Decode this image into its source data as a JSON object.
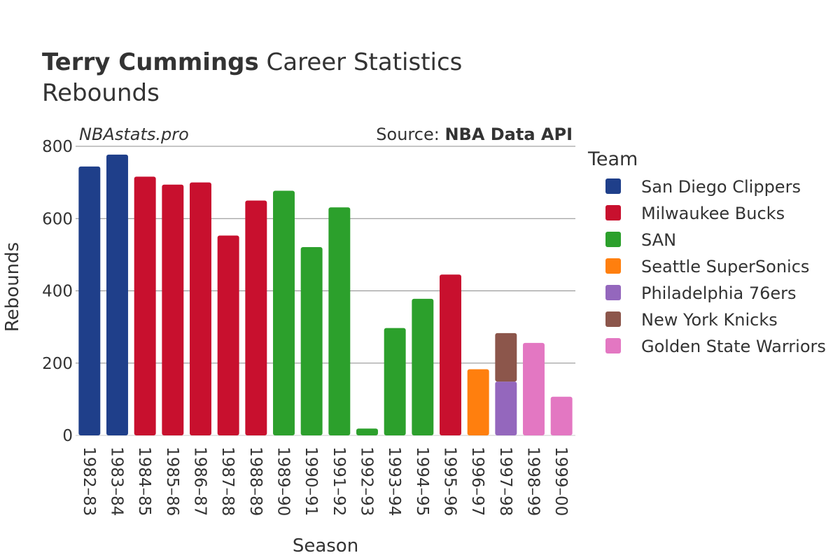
{
  "title": {
    "bold": "Terry Cummings",
    "rest": " Career Statistics"
  },
  "subtitle": "Rebounds",
  "watermark": "NBAstats.pro",
  "source": {
    "prefix": "Source: ",
    "name": "NBA Data API"
  },
  "legend_title": "Team",
  "chart_data": {
    "type": "bar",
    "stacked": true,
    "xlabel": "Season",
    "ylabel": "Rebounds",
    "ylim": [
      0,
      800
    ],
    "yticks": [
      0,
      200,
      400,
      600,
      800
    ],
    "grid": true,
    "legend_position": "right",
    "categories": [
      "1982–83",
      "1983–84",
      "1984–85",
      "1985–86",
      "1986–87",
      "1987–88",
      "1988–89",
      "1989–90",
      "1990–91",
      "1991–92",
      "1992–93",
      "1993–94",
      "1994–95",
      "1995–96",
      "1996–97",
      "1997–98",
      "1998–99",
      "1999–00"
    ],
    "series": [
      {
        "name": "San Diego Clippers",
        "color": "#1f3f8a",
        "values": [
          744,
          777,
          0,
          0,
          0,
          0,
          0,
          0,
          0,
          0,
          0,
          0,
          0,
          0,
          0,
          0,
          0,
          0
        ]
      },
      {
        "name": "Milwaukee Bucks",
        "color": "#c8102e",
        "values": [
          0,
          0,
          716,
          694,
          700,
          553,
          650,
          0,
          0,
          0,
          0,
          0,
          0,
          445,
          0,
          0,
          0,
          0
        ]
      },
      {
        "name": "SAN",
        "color": "#2ca02c",
        "values": [
          0,
          0,
          0,
          0,
          0,
          0,
          0,
          677,
          521,
          631,
          19,
          297,
          378,
          0,
          0,
          0,
          0,
          0
        ]
      },
      {
        "name": "Seattle SuperSonics",
        "color": "#ff7f0e",
        "values": [
          0,
          0,
          0,
          0,
          0,
          0,
          0,
          0,
          0,
          0,
          0,
          0,
          0,
          0,
          183,
          0,
          0,
          0
        ]
      },
      {
        "name": "Philadelphia 76ers",
        "color": "#9467bd",
        "values": [
          0,
          0,
          0,
          0,
          0,
          0,
          0,
          0,
          0,
          0,
          0,
          0,
          0,
          0,
          0,
          149,
          0,
          0
        ]
      },
      {
        "name": "New York Knicks",
        "color": "#8c564b",
        "values": [
          0,
          0,
          0,
          0,
          0,
          0,
          0,
          0,
          0,
          0,
          0,
          0,
          0,
          0,
          0,
          134,
          0,
          0
        ]
      },
      {
        "name": "Golden State Warriors",
        "color": "#e377c2",
        "values": [
          0,
          0,
          0,
          0,
          0,
          0,
          0,
          0,
          0,
          0,
          0,
          0,
          0,
          0,
          0,
          0,
          256,
          107
        ]
      }
    ]
  }
}
